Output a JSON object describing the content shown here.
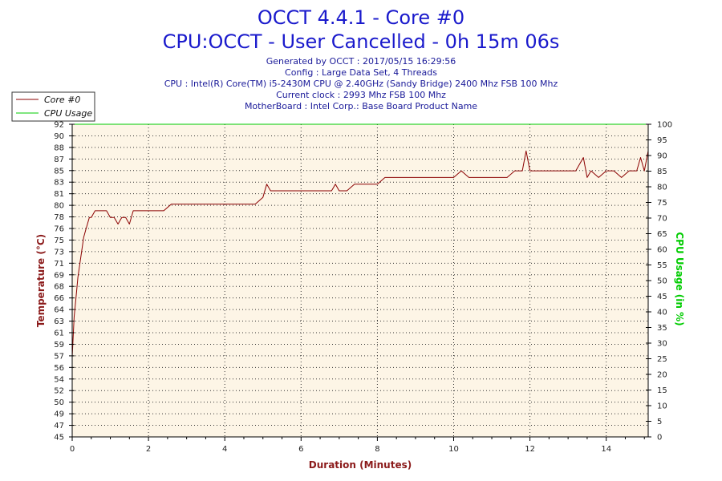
{
  "header": {
    "title_line1": "OCCT 4.4.1 - Core #0",
    "title_line2": "CPU:OCCT - User Cancelled - 0h 15m 06s",
    "info_lines": [
      "Generated by OCCT : 2017/05/15 16:29:56",
      "Config : Large Data Set, 4 Threads",
      "CPU : Intel(R) Core(TM) i5-2430M CPU @ 2.40GHz (Sandy Bridge) 2400 Mhz FSB 100 Mhz",
      "Current clock : 2993 Mhz FSB 100 Mhz",
      "MotherBoard : Intel Corp.: Base Board Product Name"
    ]
  },
  "colors": {
    "title": "#1a1acc",
    "info": "#1a1a99",
    "temperature": "#8b0000",
    "temperature_label": "#8b1a1a",
    "cpu_usage": "#00cc00",
    "plot_background": "#fdf5e6",
    "grid": "#333333"
  },
  "chart_data": {
    "type": "line",
    "xlabel": "Duration (Minutes)",
    "ylabel_left": "Temperature (°C)",
    "ylabel_right": "CPU Usage (in %)",
    "xlim": [
      0,
      15.1
    ],
    "ylim_left": [
      45,
      92
    ],
    "ylim_right": [
      0,
      100
    ],
    "x_ticks": [
      "0",
      "2",
      "4",
      "6",
      "8",
      "10",
      "12",
      "14"
    ],
    "y_left_ticks": [
      "45",
      "47",
      "49",
      "50",
      "52",
      "54",
      "56",
      "57",
      "59",
      "61",
      "63",
      "64",
      "66",
      "68",
      "69",
      "71",
      "73",
      "75",
      "76",
      "78",
      "80",
      "81",
      "83",
      "85",
      "87",
      "88",
      "90",
      "92"
    ],
    "y_right_ticks": [
      "0",
      "5",
      "10",
      "15",
      "20",
      "25",
      "30",
      "35",
      "40",
      "45",
      "50",
      "55",
      "60",
      "65",
      "70",
      "75",
      "80",
      "85",
      "90",
      "95",
      "100"
    ],
    "grid": true,
    "legend_position": "top-left",
    "legend": [
      "Core #0",
      "CPU Usage"
    ],
    "series": [
      {
        "name": "Core #0",
        "axis": "left",
        "x": [
          0,
          0.05,
          0.1,
          0.15,
          0.2,
          0.25,
          0.3,
          0.35,
          0.4,
          0.45,
          0.5,
          0.6,
          0.7,
          0.8,
          0.9,
          1.0,
          1.1,
          1.2,
          1.3,
          1.4,
          1.5,
          1.6,
          1.7,
          1.8,
          1.9,
          2.0,
          2.2,
          2.4,
          2.6,
          2.8,
          3.0,
          3.2,
          3.4,
          3.6,
          3.8,
          4.0,
          4.2,
          4.4,
          4.6,
          4.8,
          5.0,
          5.1,
          5.2,
          5.4,
          5.6,
          5.8,
          6.0,
          6.2,
          6.4,
          6.6,
          6.8,
          6.9,
          7.0,
          7.2,
          7.4,
          7.6,
          7.8,
          8.0,
          8.2,
          8.4,
          8.6,
          8.8,
          9.0,
          9.2,
          9.4,
          9.6,
          9.8,
          10.0,
          10.2,
          10.4,
          10.6,
          10.8,
          11.0,
          11.2,
          11.4,
          11.6,
          11.8,
          11.9,
          12.0,
          12.2,
          12.4,
          12.6,
          12.8,
          13.0,
          13.2,
          13.4,
          13.5,
          13.6,
          13.8,
          14.0,
          14.2,
          14.4,
          14.6,
          14.8,
          14.9,
          15.0,
          15.1
        ],
        "values": [
          57,
          63,
          66,
          69,
          71,
          73,
          75,
          76,
          77,
          78,
          78,
          79,
          79,
          79,
          79,
          78,
          78,
          77,
          78,
          78,
          77,
          79,
          79,
          79,
          79,
          79,
          79,
          79,
          80,
          80,
          80,
          80,
          80,
          80,
          80,
          80,
          80,
          80,
          80,
          80,
          81,
          83,
          82,
          82,
          82,
          82,
          82,
          82,
          82,
          82,
          82,
          83,
          82,
          82,
          83,
          83,
          83,
          83,
          84,
          84,
          84,
          84,
          84,
          84,
          84,
          84,
          84,
          84,
          85,
          84,
          84,
          84,
          84,
          84,
          84,
          85,
          85,
          88,
          85,
          85,
          85,
          85,
          85,
          85,
          85,
          87,
          84,
          85,
          84,
          85,
          85,
          84,
          85,
          85,
          87,
          85,
          88
        ]
      },
      {
        "name": "CPU Usage",
        "axis": "right",
        "x": [
          0,
          15.1
        ],
        "values": [
          100,
          100
        ]
      }
    ]
  }
}
